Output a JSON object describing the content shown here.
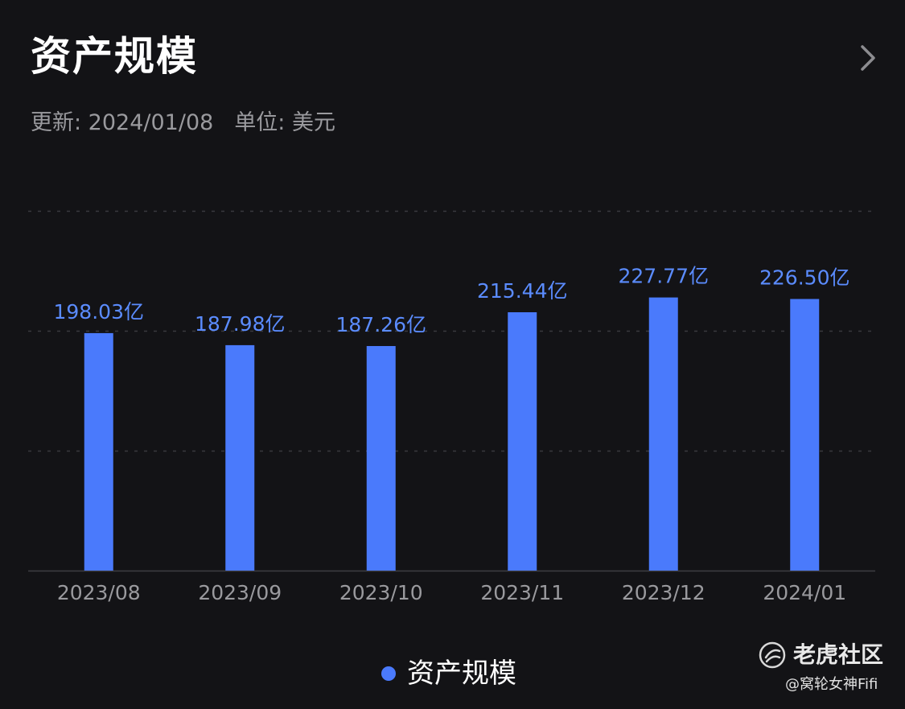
{
  "header": {
    "title": "资产规模",
    "update_text": "更新: 2024/01/08",
    "unit_text": "单位: 美元"
  },
  "colors": {
    "background": "#131316",
    "bar": "#4a7afc",
    "value_label": "#5b8cff",
    "tick_label": "#9a9a9e",
    "grid": "#3a3a3e"
  },
  "icons": {
    "more": "chevron-right-icon",
    "legend": "legend-dot-icon",
    "watermark": "tiger-logo-icon"
  },
  "legend": {
    "label": "资产规模"
  },
  "watermark": {
    "brand": "老虎社区",
    "user": "@窝轮女神Fifi"
  },
  "chart_data": {
    "type": "bar",
    "title": "资产规模",
    "xlabel": "",
    "ylabel": "",
    "ylim": [
      0,
      300
    ],
    "grid": true,
    "legend_position": "bottom-center",
    "categories": [
      "2023/08",
      "2023/09",
      "2023/10",
      "2023/11",
      "2023/12",
      "2024/01"
    ],
    "series": [
      {
        "name": "资产规模",
        "values": [
          198.03,
          187.98,
          187.26,
          215.44,
          227.77,
          226.5
        ],
        "labels": [
          "198.03亿",
          "187.98亿",
          "187.26亿",
          "215.44亿",
          "227.77亿",
          "226.50亿"
        ]
      }
    ]
  }
}
